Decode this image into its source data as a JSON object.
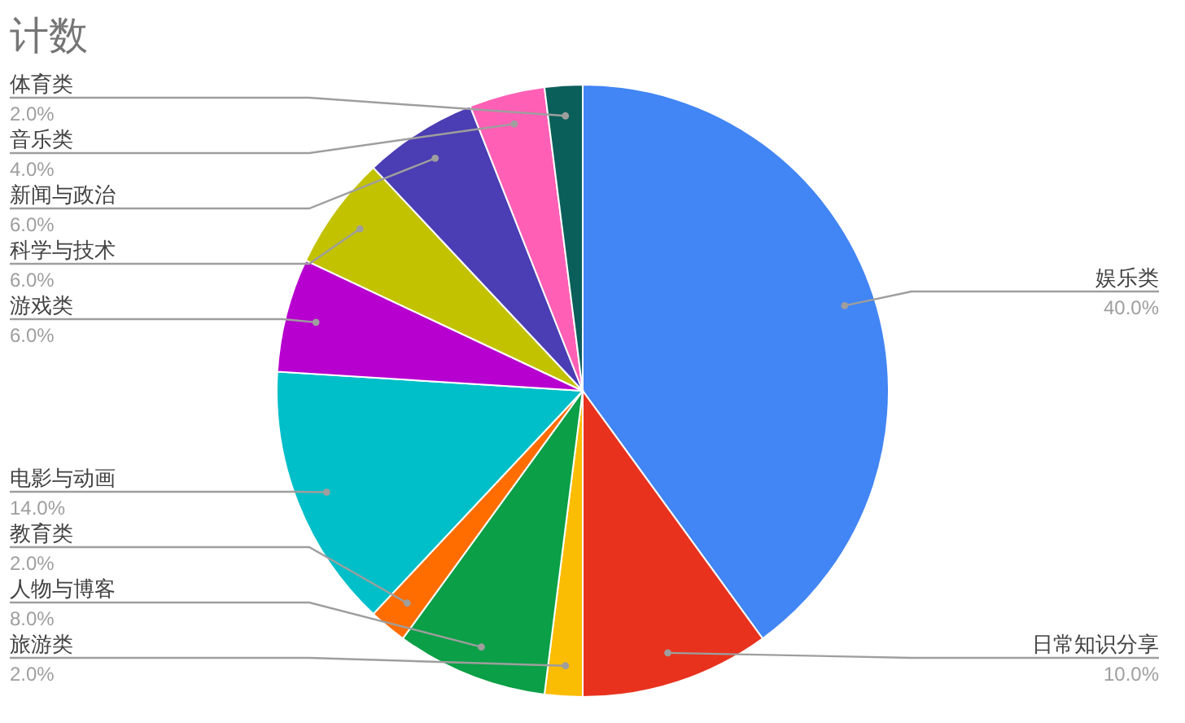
{
  "chart_data": {
    "type": "pie",
    "title": "计数",
    "categories": [
      "娱乐类",
      "日常知识分享",
      "旅游类",
      "人物与博客",
      "教育类",
      "电影与动画",
      "游戏类",
      "科学与技术",
      "新闻与政治",
      "音乐类",
      "体育类"
    ],
    "values": [
      40,
      10,
      2,
      8,
      2,
      14,
      6,
      6,
      6,
      4,
      2
    ],
    "value_labels": [
      "40.0%",
      "10.0%",
      "2.0%",
      "8.0%",
      "2.0%",
      "14.0%",
      "6.0%",
      "6.0%",
      "6.0%",
      "4.0%",
      "2.0%"
    ],
    "colors": [
      "#4285f4",
      "#e8321e",
      "#fbbc04",
      "#0b9f47",
      "#ff6d01",
      "#00bfc8",
      "#b700cf",
      "#c2c200",
      "#4b3db3",
      "#ff5fb5",
      "#0b5f5a"
    ]
  }
}
